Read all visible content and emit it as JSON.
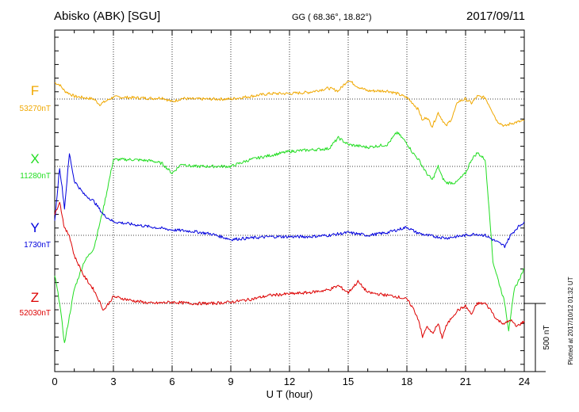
{
  "header": {
    "station": "Abisko (ABK)  [SGU]",
    "coords": "GG ( 68.36°,  18.82°)",
    "date": "2017/09/11"
  },
  "side_note": "Plotted at 2017/10/12 01:32 UT",
  "scale_bar": {
    "label": "500 nT",
    "value_nT": 500
  },
  "chart_data": {
    "type": "line",
    "xlabel": "U T (hour)",
    "xlim": [
      0,
      24
    ],
    "x_ticks": [
      "0",
      "3",
      "6",
      "9",
      "12",
      "15",
      "18",
      "21",
      "24"
    ],
    "grid": true,
    "series": [
      {
        "name": "F",
        "baseline_label": "53270nT",
        "color": "#f0a800",
        "x": [
          0,
          0.25,
          0.5,
          1,
          1.5,
          2,
          2.3,
          3,
          4,
          5,
          5.5,
          6,
          6.5,
          7,
          8,
          9,
          10,
          11,
          12,
          13,
          14,
          14.5,
          15,
          15.5,
          16,
          17,
          17.5,
          18,
          18.3,
          18.6,
          18.8,
          19,
          19.3,
          19.6,
          19.8,
          20,
          20.3,
          20.6,
          21,
          21.3,
          21.6,
          22,
          22.3,
          22.6,
          23,
          23.3,
          23.6,
          24
        ],
        "y": [
          120,
          105,
          60,
          20,
          10,
          0,
          -40,
          15,
          10,
          5,
          10,
          -20,
          5,
          0,
          0,
          0,
          20,
          40,
          40,
          50,
          80,
          60,
          140,
          90,
          60,
          60,
          40,
          10,
          -30,
          -80,
          -160,
          -130,
          -200,
          -100,
          -150,
          -200,
          -140,
          -20,
          0,
          -30,
          20,
          10,
          -70,
          -160,
          -200,
          -180,
          -170,
          -160
        ]
      },
      {
        "name": "X",
        "baseline_label": "11280nT",
        "color": "#22dd22",
        "x": [
          0,
          0.25,
          0.5,
          0.75,
          1,
          1.5,
          2,
          2.5,
          3,
          4,
          5,
          5.5,
          6,
          6.5,
          7,
          8,
          9,
          10,
          11,
          12,
          13,
          14,
          14.5,
          15,
          15.5,
          16,
          17,
          17.5,
          18,
          18.3,
          18.6,
          19,
          19.3,
          19.6,
          19.8,
          20,
          20.5,
          21,
          21.3,
          21.6,
          22,
          22.2,
          22.4,
          22.6,
          22.8,
          23,
          23.2,
          23.5,
          24
        ],
        "y": [
          -800,
          -1000,
          -1300,
          -1100,
          -900,
          -700,
          -600,
          -300,
          50,
          50,
          40,
          20,
          -50,
          20,
          0,
          0,
          0,
          50,
          80,
          110,
          120,
          130,
          210,
          160,
          150,
          140,
          160,
          250,
          170,
          100,
          50,
          -50,
          -100,
          0,
          -80,
          -120,
          -120,
          -50,
          50,
          100,
          50,
          -300,
          -700,
          -800,
          -900,
          -1000,
          -1200,
          -900,
          -750
        ]
      },
      {
        "name": "Y",
        "baseline_label": "1730nT",
        "color": "#0000dd",
        "x": [
          0,
          0.25,
          0.5,
          0.75,
          1,
          1.5,
          2,
          2.5,
          3,
          4,
          5,
          6,
          7,
          8,
          9,
          10,
          11,
          12,
          13,
          14,
          15,
          16,
          17,
          18,
          18.5,
          19,
          20,
          21,
          21.5,
          22,
          22.5,
          23,
          23.3,
          23.6,
          24
        ],
        "y": [
          100,
          500,
          200,
          600,
          400,
          300,
          250,
          150,
          100,
          80,
          60,
          40,
          30,
          10,
          -30,
          -20,
          -10,
          -10,
          -10,
          0,
          20,
          0,
          20,
          60,
          20,
          0,
          -20,
          0,
          10,
          0,
          -40,
          -80,
          0,
          50,
          100
        ]
      },
      {
        "name": "Z",
        "baseline_label": "52030nT",
        "color": "#dd0000",
        "x": [
          0,
          0.25,
          0.5,
          0.75,
          1,
          1.5,
          2,
          2.5,
          3,
          4,
          5,
          6,
          7,
          8,
          9,
          10,
          11,
          12,
          13,
          14,
          14.5,
          15,
          15.5,
          16,
          17,
          17.5,
          18,
          18.3,
          18.6,
          18.8,
          19,
          19.3,
          19.6,
          19.8,
          20,
          20.3,
          20.6,
          21,
          21.3,
          21.6,
          22,
          22.3,
          22.6,
          23,
          23.3,
          23.6,
          24
        ],
        "y": [
          650,
          750,
          550,
          500,
          350,
          200,
          100,
          -50,
          50,
          20,
          0,
          10,
          0,
          0,
          10,
          30,
          60,
          70,
          80,
          100,
          130,
          80,
          160,
          80,
          60,
          50,
          30,
          -30,
          -120,
          -250,
          -170,
          -220,
          -150,
          -250,
          -170,
          -100,
          -50,
          -20,
          -80,
          0,
          0,
          -50,
          -120,
          -150,
          -120,
          -170,
          -130
        ]
      }
    ]
  }
}
